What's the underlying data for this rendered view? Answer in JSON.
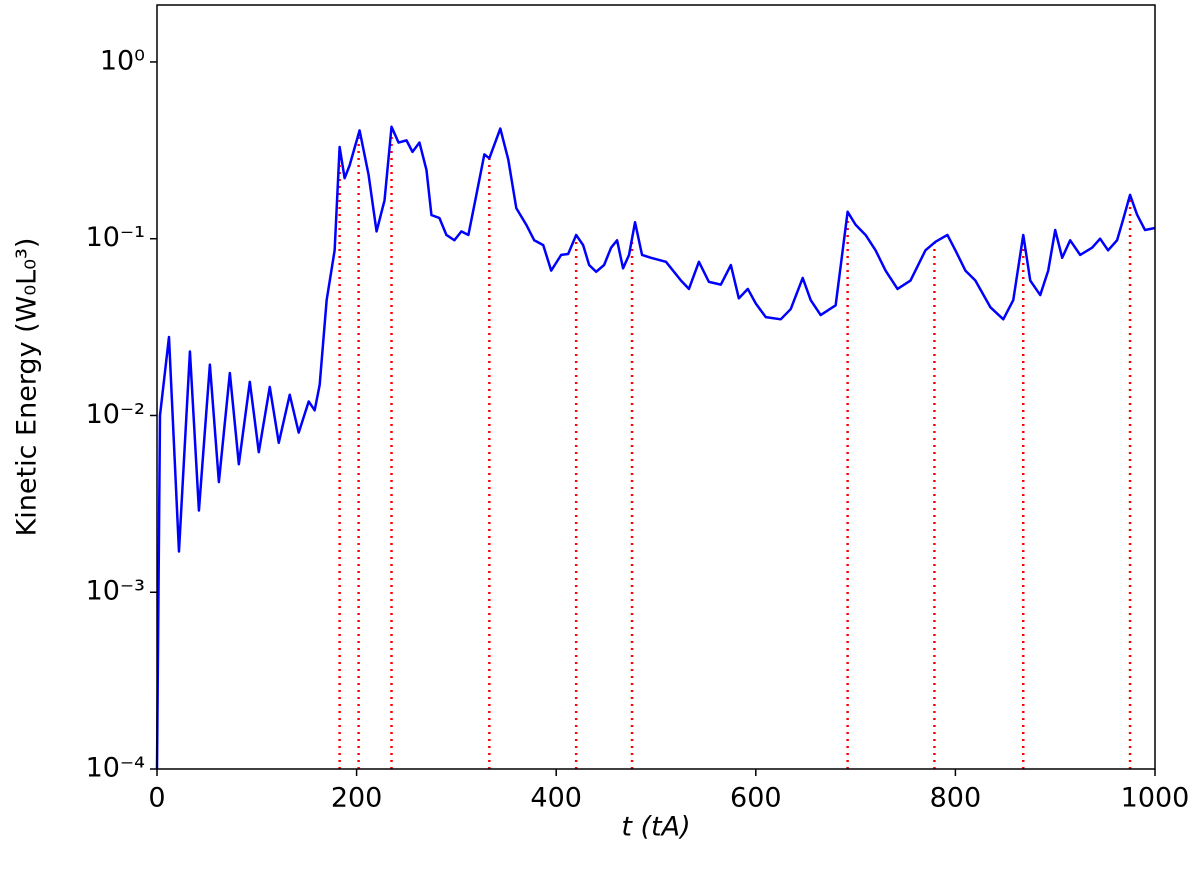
{
  "chart_data": {
    "type": "line",
    "x_label": "t (tA)",
    "y_label": "Kinetic Energy (W₀L₀³)",
    "yscale": "log",
    "xlim": [
      0,
      1000
    ],
    "ylim": [
      0.0001,
      2.1
    ],
    "xticks": [
      0,
      200,
      400,
      600,
      800,
      1000
    ],
    "yticks": [
      {
        "value": 0.0001,
        "label": "10⁻⁴"
      },
      {
        "value": 0.001,
        "label": "10⁻³"
      },
      {
        "value": 0.01,
        "label": "10⁻²"
      },
      {
        "value": 0.1,
        "label": "10⁻¹"
      },
      {
        "value": 1,
        "label": "10⁰"
      }
    ],
    "grid": false,
    "x": [
      0,
      3,
      12,
      22,
      33,
      42,
      53,
      62,
      73,
      82,
      93,
      102,
      113,
      122,
      133,
      142,
      152,
      158,
      163,
      170,
      178,
      183,
      188,
      193,
      203,
      212,
      220,
      228,
      235,
      242,
      250,
      256,
      263,
      270,
      275,
      283,
      290,
      298,
      305,
      312,
      320,
      328,
      333,
      344,
      352,
      360,
      370,
      378,
      387,
      395,
      405,
      412,
      420,
      427,
      433,
      440,
      448,
      455,
      461,
      467,
      473,
      479,
      486,
      495,
      510,
      525,
      533,
      543,
      553,
      565,
      575,
      583,
      592,
      600,
      610,
      625,
      635,
      647,
      655,
      665,
      680,
      692,
      700,
      710,
      720,
      730,
      742,
      755,
      770,
      780,
      792,
      800,
      810,
      820,
      835,
      848,
      858,
      868,
      875,
      885,
      893,
      900,
      907,
      915,
      925,
      937,
      945,
      953,
      962,
      968,
      975,
      982,
      990,
      1000
    ],
    "series": [
      {
        "name": "Kinetic Energy",
        "color": "#0000ff",
        "values": [
          0.0001,
          0.01,
          0.0278,
          0.0017,
          0.023,
          0.0029,
          0.0194,
          0.0042,
          0.0174,
          0.0053,
          0.0155,
          0.0062,
          0.0145,
          0.007,
          0.0131,
          0.008,
          0.012,
          0.0107,
          0.0149,
          0.045,
          0.086,
          0.33,
          0.22,
          0.26,
          0.41,
          0.23,
          0.11,
          0.165,
          0.43,
          0.35,
          0.36,
          0.31,
          0.35,
          0.245,
          0.136,
          0.131,
          0.105,
          0.098,
          0.11,
          0.105,
          0.177,
          0.3,
          0.285,
          0.42,
          0.28,
          0.149,
          0.12,
          0.098,
          0.092,
          0.066,
          0.081,
          0.082,
          0.105,
          0.092,
          0.071,
          0.065,
          0.071,
          0.089,
          0.098,
          0.068,
          0.081,
          0.124,
          0.081,
          0.078,
          0.074,
          0.058,
          0.052,
          0.074,
          0.057,
          0.055,
          0.071,
          0.046,
          0.052,
          0.043,
          0.036,
          0.035,
          0.04,
          0.06,
          0.045,
          0.037,
          0.042,
          0.142,
          0.12,
          0.105,
          0.086,
          0.066,
          0.052,
          0.058,
          0.086,
          0.096,
          0.105,
          0.086,
          0.066,
          0.058,
          0.041,
          0.035,
          0.045,
          0.105,
          0.058,
          0.048,
          0.066,
          0.112,
          0.078,
          0.098,
          0.081,
          0.089,
          0.1,
          0.086,
          0.098,
          0.128,
          0.177,
          0.137,
          0.112,
          0.115
        ]
      }
    ],
    "markers": {
      "color": "#ff0000",
      "x": [
        183,
        202,
        235,
        333,
        420,
        476,
        692,
        779,
        868,
        975
      ]
    }
  }
}
